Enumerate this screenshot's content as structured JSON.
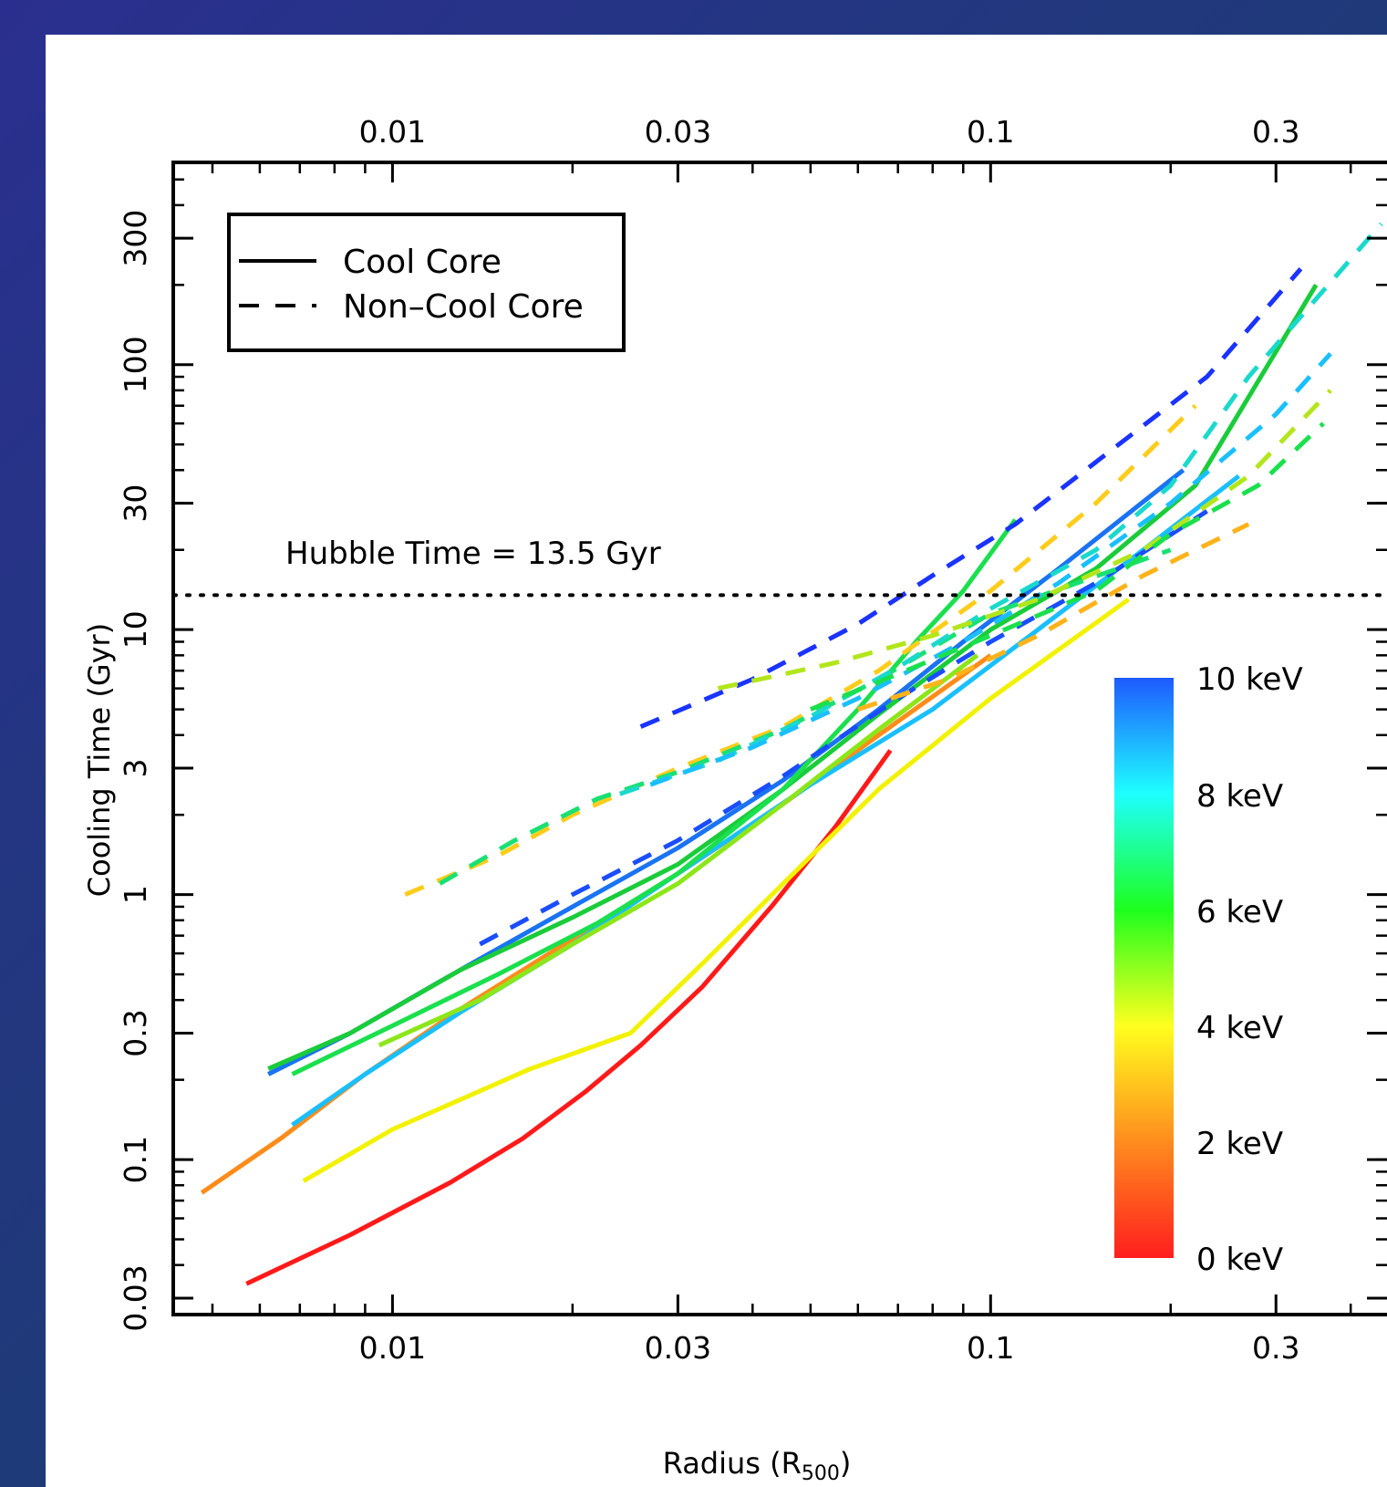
{
  "chart_data": {
    "type": "line",
    "xlabel": "Radius (R",
    "xlabel_sub": "500",
    "xlabel_close": ")",
    "ylabel": "Cooling Time (Gyr)",
    "xscale": "log",
    "yscale": "log",
    "xlim": [
      0.0043,
      0.46
    ],
    "ylim": [
      0.026,
      580
    ],
    "xticks": [
      0.01,
      0.03,
      0.1,
      0.3
    ],
    "xtick_labels": [
      "0.01",
      "0.03",
      "0.1",
      "0.3"
    ],
    "yticks": [
      0.03,
      0.1,
      0.3,
      1,
      3,
      10,
      30,
      100,
      300
    ],
    "ytick_labels": [
      "0.03",
      "0.1",
      "0.3",
      "1",
      "3",
      "10",
      "30",
      "100",
      "300"
    ],
    "legend": {
      "position": "top-left",
      "entries": [
        {
          "label": "Cool Core",
          "style": "solid"
        },
        {
          "label": "Non–Cool Core",
          "style": "dashed"
        }
      ]
    },
    "annotation": {
      "text": "Hubble Time = 13.5 Gyr",
      "y": 13.5,
      "style": "dotted"
    },
    "colorbar": {
      "labels": [
        "10 keV",
        "8 keV",
        "6 keV",
        "4 keV",
        "2 keV",
        "0 keV"
      ],
      "stops": [
        "#ff1e1e",
        "#ff8c1e",
        "#ffff1e",
        "#1eff1e",
        "#1effff",
        "#1e5aff"
      ]
    },
    "series": [
      {
        "style": "solid",
        "color": "#ff1a1a",
        "x": [
          0.0057,
          0.0085,
          0.0125,
          0.0165,
          0.021,
          0.026,
          0.033,
          0.043,
          0.055,
          0.068
        ],
        "y": [
          0.034,
          0.052,
          0.082,
          0.12,
          0.18,
          0.27,
          0.45,
          0.9,
          1.8,
          3.5
        ]
      },
      {
        "style": "solid",
        "color": "#f2f200",
        "x": [
          0.0071,
          0.01,
          0.017,
          0.025,
          0.033,
          0.045,
          0.065,
          0.1,
          0.17
        ],
        "y": [
          0.083,
          0.13,
          0.22,
          0.3,
          0.55,
          1.1,
          2.5,
          5.5,
          13
        ]
      },
      {
        "style": "solid",
        "color": "#ff8c1a",
        "x": [
          0.0048,
          0.0065,
          0.009,
          0.013,
          0.02,
          0.03,
          0.045,
          0.065,
          0.1
        ],
        "y": [
          0.075,
          0.12,
          0.21,
          0.37,
          0.68,
          1.2,
          2.2,
          4,
          8
        ]
      },
      {
        "style": "solid",
        "color": "#1abfff",
        "x": [
          0.0068,
          0.009,
          0.013,
          0.02,
          0.03,
          0.05,
          0.08,
          0.12,
          0.18,
          0.26
        ],
        "y": [
          0.135,
          0.21,
          0.36,
          0.65,
          1.2,
          2.6,
          5,
          10,
          20,
          38
        ]
      },
      {
        "style": "solid",
        "color": "#1a73f2",
        "x": [
          0.0062,
          0.0085,
          0.012,
          0.02,
          0.03,
          0.045,
          0.065,
          0.09,
          0.13,
          0.21
        ],
        "y": [
          0.21,
          0.3,
          0.47,
          0.9,
          1.5,
          2.7,
          5,
          9,
          17,
          40
        ]
      },
      {
        "style": "solid",
        "color": "#1acc3a",
        "x": [
          0.0062,
          0.0085,
          0.013,
          0.02,
          0.03,
          0.045,
          0.065,
          0.1,
          0.15,
          0.22,
          0.35
        ],
        "y": [
          0.22,
          0.3,
          0.52,
          0.82,
          1.3,
          2.5,
          4.8,
          10,
          17,
          35,
          200
        ]
      },
      {
        "style": "solid",
        "color": "#1ae04d",
        "x": [
          0.0068,
          0.01,
          0.015,
          0.022,
          0.03,
          0.045,
          0.06,
          0.075,
          0.09,
          0.11
        ],
        "y": [
          0.21,
          0.32,
          0.5,
          0.78,
          1.2,
          2.5,
          5,
          9,
          14,
          26
        ]
      },
      {
        "style": "solid",
        "color": "#8ce61a",
        "x": [
          0.0095,
          0.014,
          0.02,
          0.03,
          0.045,
          0.065,
          0.095
        ],
        "y": [
          0.27,
          0.4,
          0.65,
          1.1,
          2.2,
          4.2,
          8
        ]
      },
      {
        "style": "dashed",
        "color": "#1a4dff",
        "x": [
          0.014,
          0.02,
          0.03,
          0.045,
          0.07,
          0.1,
          0.15,
          0.23
        ],
        "y": [
          0.65,
          1.0,
          1.6,
          2.8,
          5.5,
          9,
          15,
          28
        ]
      },
      {
        "style": "dashed",
        "color": "#1a33ff",
        "x": [
          0.026,
          0.04,
          0.06,
          0.08,
          0.11,
          0.16,
          0.23,
          0.33
        ],
        "y": [
          4.3,
          6.5,
          10.5,
          16,
          25,
          48,
          90,
          230
        ]
      },
      {
        "style": "dashed",
        "color": "#ffcc1a",
        "x": [
          0.0105,
          0.015,
          0.02,
          0.03,
          0.045,
          0.065,
          0.1,
          0.15,
          0.22
        ],
        "y": [
          1.0,
          1.4,
          2.0,
          3.0,
          4.3,
          7,
          14,
          30,
          70
        ]
      },
      {
        "style": "dashed",
        "color": "#1ae073",
        "x": [
          0.012,
          0.016,
          0.022,
          0.03,
          0.045,
          0.065,
          0.1,
          0.2
        ],
        "y": [
          1.1,
          1.6,
          2.3,
          2.9,
          4.2,
          6.5,
          11.5,
          20
        ]
      },
      {
        "style": "dashed",
        "color": "#1ad9cc",
        "x": [
          0.024,
          0.035,
          0.05,
          0.07,
          0.1,
          0.15,
          0.2,
          0.27,
          0.45
        ],
        "y": [
          2.4,
          3.2,
          4.7,
          7.2,
          12,
          20,
          35,
          90,
          340
        ]
      },
      {
        "style": "dashed",
        "color": "#1abfff",
        "x": [
          0.027,
          0.04,
          0.06,
          0.09,
          0.13,
          0.2,
          0.3,
          0.37
        ],
        "y": [
          2.6,
          3.6,
          5.5,
          9,
          15,
          30,
          65,
          110
        ]
      },
      {
        "style": "dashed",
        "color": "#b3e61a",
        "x": [
          0.035,
          0.055,
          0.08,
          0.12,
          0.18,
          0.27,
          0.37
        ],
        "y": [
          6.0,
          7.5,
          9.5,
          13,
          20,
          38,
          80
        ]
      },
      {
        "style": "dashed",
        "color": "#1ae04d",
        "x": [
          0.05,
          0.07,
          0.1,
          0.15,
          0.2,
          0.28,
          0.36
        ],
        "y": [
          5.0,
          6.8,
          9.5,
          14,
          23,
          35,
          60
        ]
      },
      {
        "style": "dashed",
        "color": "#ffb31a",
        "x": [
          0.06,
          0.085,
          0.12,
          0.18,
          0.27
        ],
        "y": [
          5.0,
          6.5,
          9.5,
          16,
          25
        ]
      }
    ]
  }
}
